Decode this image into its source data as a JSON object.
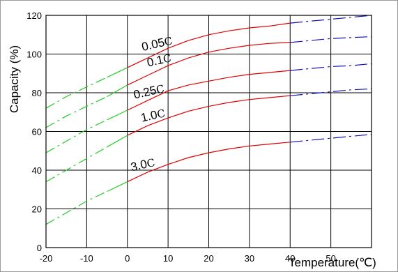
{
  "chart_data": {
    "type": "line",
    "xlabel": "Temperature(℃)",
    "ylabel": "Capacity (%)",
    "xlim": [
      -20,
      60
    ],
    "ylim": [
      0,
      120
    ],
    "x_ticks": [
      "-20",
      "-10",
      "0",
      "10",
      "20",
      "30",
      "40",
      "50"
    ],
    "y_ticks": [
      "0",
      "20",
      "40",
      "60",
      "80",
      "100",
      "120"
    ],
    "grid": true,
    "colors": {
      "low_temperature_segment": "#22cc22",
      "mid_temperature_segment": "#e00000",
      "high_temperature_segment": "#1010c0"
    },
    "series": [
      {
        "name": "0.05C",
        "label_text": "0.05",
        "x": [
          -20,
          -15,
          -10,
          -5,
          0,
          5,
          10,
          15,
          20,
          25,
          30,
          35,
          40,
          45,
          50,
          55,
          60
        ],
        "values": [
          72,
          78,
          83,
          88,
          93,
          98,
          103,
          107,
          110,
          112,
          113.5,
          114.5,
          116,
          117,
          118,
          119,
          120
        ]
      },
      {
        "name": "0.1C",
        "label_text": "0.1",
        "x": [
          -20,
          -15,
          -10,
          -5,
          0,
          5,
          10,
          15,
          20,
          25,
          30,
          35,
          40,
          45,
          50,
          55,
          60
        ],
        "values": [
          62,
          68,
          73,
          78,
          84,
          89,
          94,
          98,
          101,
          103,
          104.5,
          105.5,
          106,
          107,
          108,
          108.5,
          109
        ]
      },
      {
        "name": "0.25C",
        "label_text": "0.25",
        "x": [
          -20,
          -15,
          -10,
          -5,
          0,
          5,
          10,
          15,
          20,
          25,
          30,
          35,
          40,
          45,
          50,
          55,
          60
        ],
        "values": [
          49,
          55,
          61,
          66,
          71,
          76,
          81,
          84,
          86,
          88,
          89.5,
          90.5,
          91.5,
          92.5,
          93.5,
          94,
          95
        ]
      },
      {
        "name": "1.0C",
        "label_text": "1.0",
        "x": [
          -20,
          -15,
          -10,
          -5,
          0,
          5,
          10,
          15,
          20,
          25,
          30,
          35,
          40,
          45,
          50,
          55,
          60
        ],
        "values": [
          34,
          40,
          46,
          52,
          58,
          63,
          67,
          70.5,
          73,
          75,
          76.5,
          77.5,
          78.5,
          79.5,
          80.5,
          81.5,
          82
        ]
      },
      {
        "name": "3.0C",
        "label_text": "3.0",
        "x": [
          -20,
          -15,
          -10,
          -5,
          0,
          5,
          10,
          15,
          20,
          25,
          30,
          35,
          40,
          45,
          50,
          55,
          60
        ],
        "values": [
          12,
          18,
          24,
          29,
          34,
          39,
          43,
          46.5,
          49,
          51,
          52.5,
          53.5,
          54.5,
          55.5,
          56.5,
          57.5,
          58.5
        ]
      }
    ]
  }
}
